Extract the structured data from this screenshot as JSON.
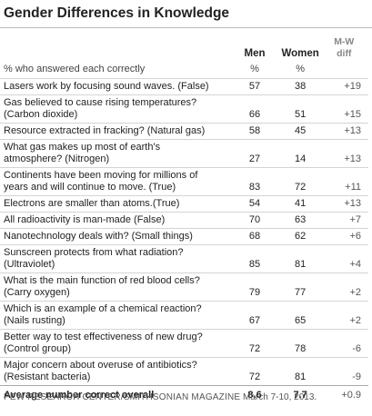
{
  "header": {
    "title": "Gender Differences in Knowledge"
  },
  "table": {
    "columns": [
      "Men",
      "Women",
      "M-W diff"
    ],
    "subheader": {
      "label": "% who answered each correctly",
      "men": "%",
      "women": "%"
    },
    "rows": [
      {
        "lines": [
          "Lasers work by focusing sound waves. (False)"
        ],
        "men": 57,
        "women": 38,
        "diff": "+19"
      },
      {
        "lines": [
          "Gas believed to cause rising temperatures?",
          "(Carbon dioxide)"
        ],
        "men": 66,
        "women": 51,
        "diff": "+15"
      },
      {
        "lines": [
          "Resource extracted in fracking? (Natural gas)"
        ],
        "men": 58,
        "women": 45,
        "diff": "+13"
      },
      {
        "lines": [
          "What gas makes up most of earth's",
          "atmosphere? (Nitrogen)"
        ],
        "men": 27,
        "women": 14,
        "diff": "+13"
      },
      {
        "lines": [
          "Continents have been moving for millions of",
          "years and will continue to move. (True)"
        ],
        "men": 83,
        "women": 72,
        "diff": "+11"
      },
      {
        "lines": [
          "Electrons are smaller than atoms.(True)"
        ],
        "men": 54,
        "women": 41,
        "diff": "+13"
      },
      {
        "lines": [
          "All radioactivity is man-made (False)"
        ],
        "men": 70,
        "women": 63,
        "diff": "+7"
      },
      {
        "lines": [
          "Nanotechnology deals with? (Small things)"
        ],
        "men": 68,
        "women": 62,
        "diff": "+6"
      },
      {
        "lines": [
          "Sunscreen protects from what radiation?",
          "(Ultraviolet)"
        ],
        "men": 85,
        "women": 81,
        "diff": "+4"
      },
      {
        "lines": [
          "What is the main function of red blood cells?",
          "(Carry oxygen)"
        ],
        "men": 79,
        "women": 77,
        "diff": "+2"
      },
      {
        "lines": [
          "Which is an example of a chemical reaction?",
          "(Nails rusting)"
        ],
        "men": 67,
        "women": 65,
        "diff": "+2"
      },
      {
        "lines": [
          "Better way to test effectiveness of new drug?",
          "(Control group)"
        ],
        "men": 72,
        "women": 78,
        "diff": "-6"
      },
      {
        "lines": [
          "Major concern about overuse of antibiotics?",
          "(Resistant bacteria)"
        ],
        "men": 72,
        "women": 81,
        "diff": "-9"
      }
    ],
    "footer": {
      "label": "Average number correct overall",
      "men": 8.6,
      "women": 7.7,
      "diff": "+0.9"
    }
  },
  "source": {
    "organization": "PEW RESEARCH CENTER/SMITHSONIAN MAGAZINE",
    "date": "March 7-10, 2013."
  }
}
